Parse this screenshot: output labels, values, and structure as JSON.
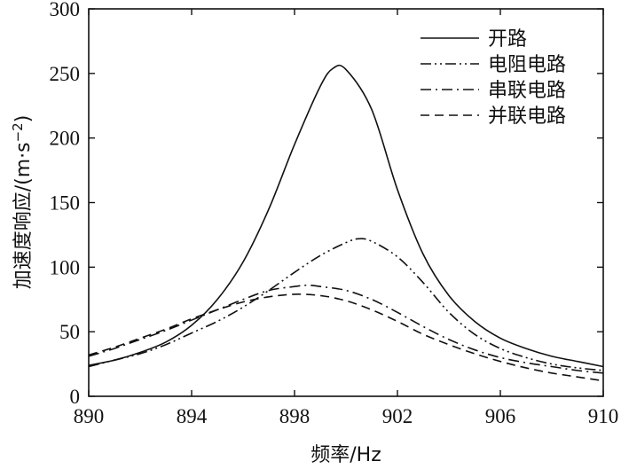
{
  "chart_data": {
    "type": "line",
    "title": "",
    "xlabel": "频率/Hz",
    "ylabel_main": "加速度响应/(m·s",
    "ylabel_sup": "−2",
    "ylabel_close": ")",
    "xlim": [
      890,
      910
    ],
    "ylim": [
      0,
      300
    ],
    "xticks": [
      890,
      894,
      898,
      902,
      906,
      910
    ],
    "yticks": [
      0,
      50,
      100,
      150,
      200,
      250,
      300
    ],
    "grid": false,
    "legend_position": "top-right",
    "series": [
      {
        "name": "开路",
        "dash": "solid",
        "points": [
          [
            890,
            24
          ],
          [
            891,
            28
          ],
          [
            892,
            34
          ],
          [
            893,
            42
          ],
          [
            894,
            55
          ],
          [
            895,
            75
          ],
          [
            896,
            104
          ],
          [
            897,
            145
          ],
          [
            898,
            195
          ],
          [
            899,
            240
          ],
          [
            899.5,
            254
          ],
          [
            900,
            253
          ],
          [
            901,
            222
          ],
          [
            902,
            160
          ],
          [
            903,
            110
          ],
          [
            904,
            78
          ],
          [
            905,
            58
          ],
          [
            906,
            45
          ],
          [
            907,
            37
          ],
          [
            908,
            31
          ],
          [
            909,
            27
          ],
          [
            910,
            23
          ]
        ]
      },
      {
        "name": "电阻电路",
        "dash": "dashdotdot",
        "points": [
          [
            890,
            23
          ],
          [
            891,
            28
          ],
          [
            892,
            33
          ],
          [
            893,
            40
          ],
          [
            894,
            49
          ],
          [
            895,
            58
          ],
          [
            896,
            69
          ],
          [
            897,
            82
          ],
          [
            898,
            96
          ],
          [
            899,
            109
          ],
          [
            900,
            119
          ],
          [
            900.5,
            122
          ],
          [
            901,
            120
          ],
          [
            902,
            108
          ],
          [
            903,
            88
          ],
          [
            904,
            65
          ],
          [
            905,
            48
          ],
          [
            906,
            37
          ],
          [
            907,
            30
          ],
          [
            908,
            25
          ],
          [
            909,
            22
          ],
          [
            910,
            20
          ]
        ]
      },
      {
        "name": "串联电路",
        "dash": "dashdot",
        "points": [
          [
            890,
            31
          ],
          [
            891,
            37
          ],
          [
            892,
            44
          ],
          [
            893,
            51
          ],
          [
            894,
            59
          ],
          [
            895,
            67
          ],
          [
            896,
            75
          ],
          [
            897,
            82
          ],
          [
            898,
            85
          ],
          [
            898.5,
            86
          ],
          [
            899,
            85
          ],
          [
            900,
            82
          ],
          [
            901,
            75
          ],
          [
            902,
            65
          ],
          [
            903,
            54
          ],
          [
            904,
            44
          ],
          [
            905,
            36
          ],
          [
            906,
            30
          ],
          [
            907,
            26
          ],
          [
            908,
            23
          ],
          [
            909,
            20
          ],
          [
            910,
            18
          ]
        ]
      },
      {
        "name": "并联电路",
        "dash": "dashed",
        "points": [
          [
            890,
            32
          ],
          [
            891,
            38
          ],
          [
            892,
            45
          ],
          [
            893,
            52
          ],
          [
            894,
            60
          ],
          [
            895,
            67
          ],
          [
            896,
            73
          ],
          [
            897,
            77
          ],
          [
            898,
            79
          ],
          [
            899,
            78
          ],
          [
            900,
            74
          ],
          [
            901,
            67
          ],
          [
            902,
            58
          ],
          [
            903,
            48
          ],
          [
            904,
            40
          ],
          [
            905,
            33
          ],
          [
            906,
            27
          ],
          [
            907,
            22
          ],
          [
            908,
            18
          ],
          [
            909,
            15
          ],
          [
            910,
            12
          ]
        ]
      }
    ]
  }
}
